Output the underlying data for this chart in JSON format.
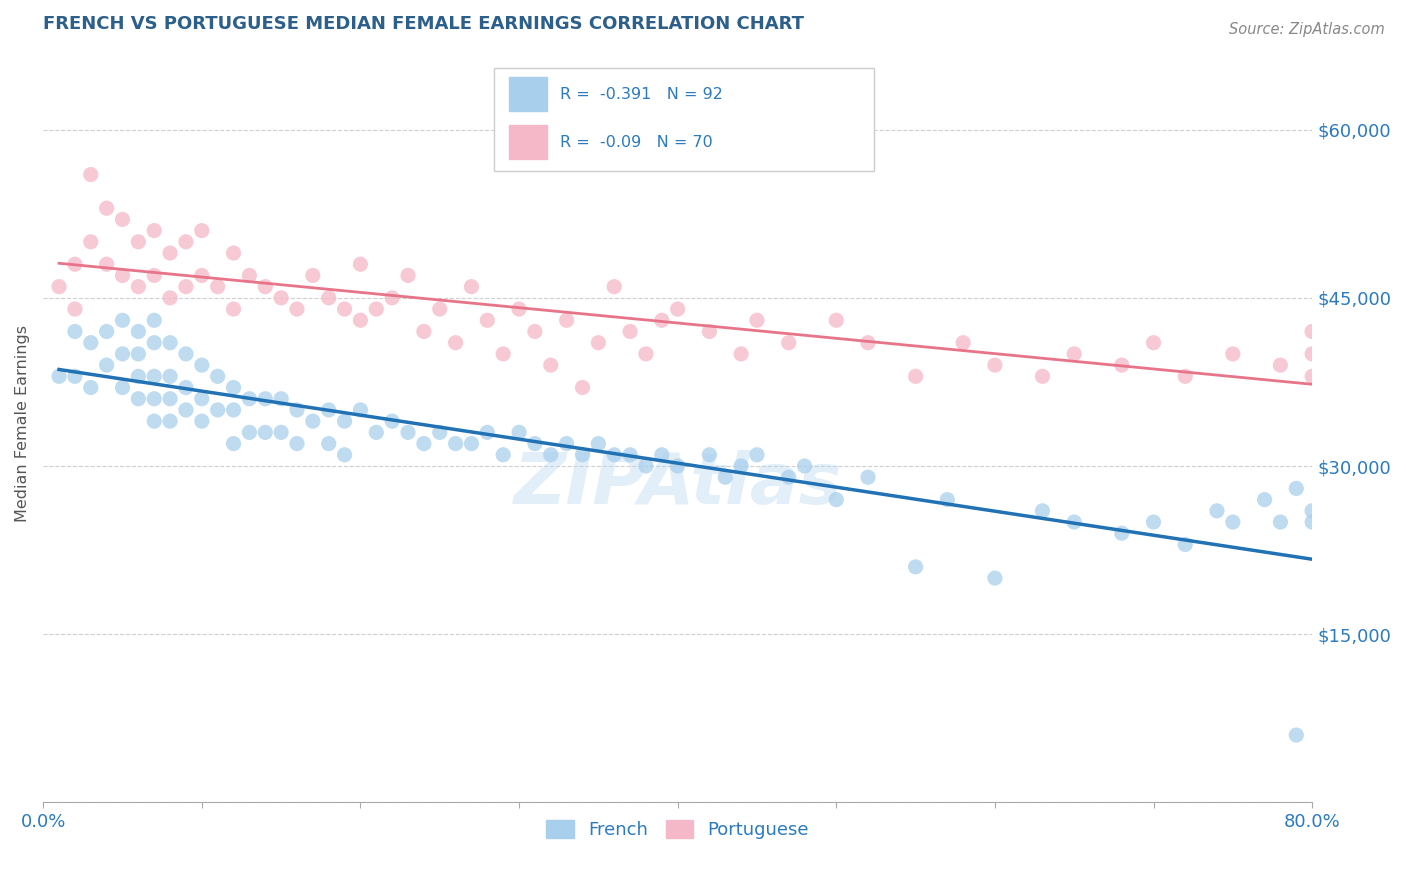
{
  "title": "FRENCH VS PORTUGUESE MEDIAN FEMALE EARNINGS CORRELATION CHART",
  "source": "Source: ZipAtlas.com",
  "ylabel": "Median Female Earnings",
  "xlim": [
    0.0,
    0.8
  ],
  "ylim": [
    0,
    67500
  ],
  "yticks": [
    0,
    15000,
    30000,
    45000,
    60000
  ],
  "ytick_labels_right": [
    "",
    "$15,000",
    "$30,000",
    "$45,000",
    "$60,000"
  ],
  "xticks": [
    0.0,
    0.1,
    0.2,
    0.3,
    0.4,
    0.5,
    0.6,
    0.7,
    0.8
  ],
  "french_R": -0.391,
  "french_N": 92,
  "portuguese_R": -0.09,
  "portuguese_N": 70,
  "french_color": "#a8d0ec",
  "portuguese_color": "#f4b8c8",
  "french_line_color": "#2171b5",
  "portuguese_line_color": "#e8748a",
  "title_color": "#2c5f8a",
  "axis_label_color": "#555555",
  "tick_color": "#2c7abf",
  "source_color": "#888888",
  "watermark_color": "#b8d8f0",
  "background_color": "#ffffff",
  "grid_color": "#d0d0d0",
  "french_x": [
    0.01,
    0.02,
    0.02,
    0.03,
    0.03,
    0.04,
    0.04,
    0.05,
    0.05,
    0.05,
    0.06,
    0.06,
    0.06,
    0.06,
    0.07,
    0.07,
    0.07,
    0.07,
    0.07,
    0.08,
    0.08,
    0.08,
    0.08,
    0.09,
    0.09,
    0.09,
    0.1,
    0.1,
    0.1,
    0.11,
    0.11,
    0.12,
    0.12,
    0.12,
    0.13,
    0.13,
    0.14,
    0.14,
    0.15,
    0.15,
    0.16,
    0.16,
    0.17,
    0.18,
    0.18,
    0.19,
    0.19,
    0.2,
    0.21,
    0.22,
    0.23,
    0.24,
    0.25,
    0.26,
    0.27,
    0.28,
    0.29,
    0.3,
    0.31,
    0.32,
    0.33,
    0.34,
    0.35,
    0.36,
    0.37,
    0.38,
    0.39,
    0.4,
    0.42,
    0.43,
    0.44,
    0.45,
    0.47,
    0.48,
    0.5,
    0.52,
    0.55,
    0.57,
    0.6,
    0.63,
    0.65,
    0.68,
    0.7,
    0.72,
    0.74,
    0.75,
    0.77,
    0.78,
    0.79,
    0.79,
    0.8,
    0.8
  ],
  "french_y": [
    38000,
    42000,
    38000,
    41000,
    37000,
    42000,
    39000,
    43000,
    40000,
    37000,
    42000,
    40000,
    38000,
    36000,
    43000,
    41000,
    38000,
    36000,
    34000,
    41000,
    38000,
    36000,
    34000,
    40000,
    37000,
    35000,
    39000,
    36000,
    34000,
    38000,
    35000,
    37000,
    35000,
    32000,
    36000,
    33000,
    36000,
    33000,
    36000,
    33000,
    35000,
    32000,
    34000,
    35000,
    32000,
    34000,
    31000,
    35000,
    33000,
    34000,
    33000,
    32000,
    33000,
    32000,
    32000,
    33000,
    31000,
    33000,
    32000,
    31000,
    32000,
    31000,
    32000,
    31000,
    31000,
    30000,
    31000,
    30000,
    31000,
    29000,
    30000,
    31000,
    29000,
    30000,
    27000,
    29000,
    21000,
    27000,
    20000,
    26000,
    25000,
    24000,
    25000,
    23000,
    26000,
    25000,
    27000,
    25000,
    28000,
    6000,
    26000,
    25000
  ],
  "portuguese_x": [
    0.01,
    0.02,
    0.02,
    0.03,
    0.03,
    0.04,
    0.04,
    0.05,
    0.05,
    0.06,
    0.06,
    0.07,
    0.07,
    0.08,
    0.08,
    0.09,
    0.09,
    0.1,
    0.1,
    0.11,
    0.12,
    0.12,
    0.13,
    0.14,
    0.15,
    0.16,
    0.17,
    0.18,
    0.19,
    0.2,
    0.2,
    0.21,
    0.22,
    0.23,
    0.24,
    0.25,
    0.26,
    0.27,
    0.28,
    0.29,
    0.3,
    0.31,
    0.32,
    0.33,
    0.34,
    0.35,
    0.36,
    0.37,
    0.38,
    0.39,
    0.4,
    0.42,
    0.44,
    0.45,
    0.47,
    0.5,
    0.52,
    0.55,
    0.58,
    0.6,
    0.63,
    0.65,
    0.68,
    0.7,
    0.72,
    0.75,
    0.78,
    0.8,
    0.8,
    0.8
  ],
  "portuguese_y": [
    46000,
    48000,
    44000,
    56000,
    50000,
    53000,
    48000,
    52000,
    47000,
    50000,
    46000,
    51000,
    47000,
    49000,
    45000,
    50000,
    46000,
    51000,
    47000,
    46000,
    49000,
    44000,
    47000,
    46000,
    45000,
    44000,
    47000,
    45000,
    44000,
    48000,
    43000,
    44000,
    45000,
    47000,
    42000,
    44000,
    41000,
    46000,
    43000,
    40000,
    44000,
    42000,
    39000,
    43000,
    37000,
    41000,
    46000,
    42000,
    40000,
    43000,
    44000,
    42000,
    40000,
    43000,
    41000,
    43000,
    41000,
    38000,
    41000,
    39000,
    38000,
    40000,
    39000,
    41000,
    38000,
    40000,
    39000,
    42000,
    38000,
    40000
  ]
}
